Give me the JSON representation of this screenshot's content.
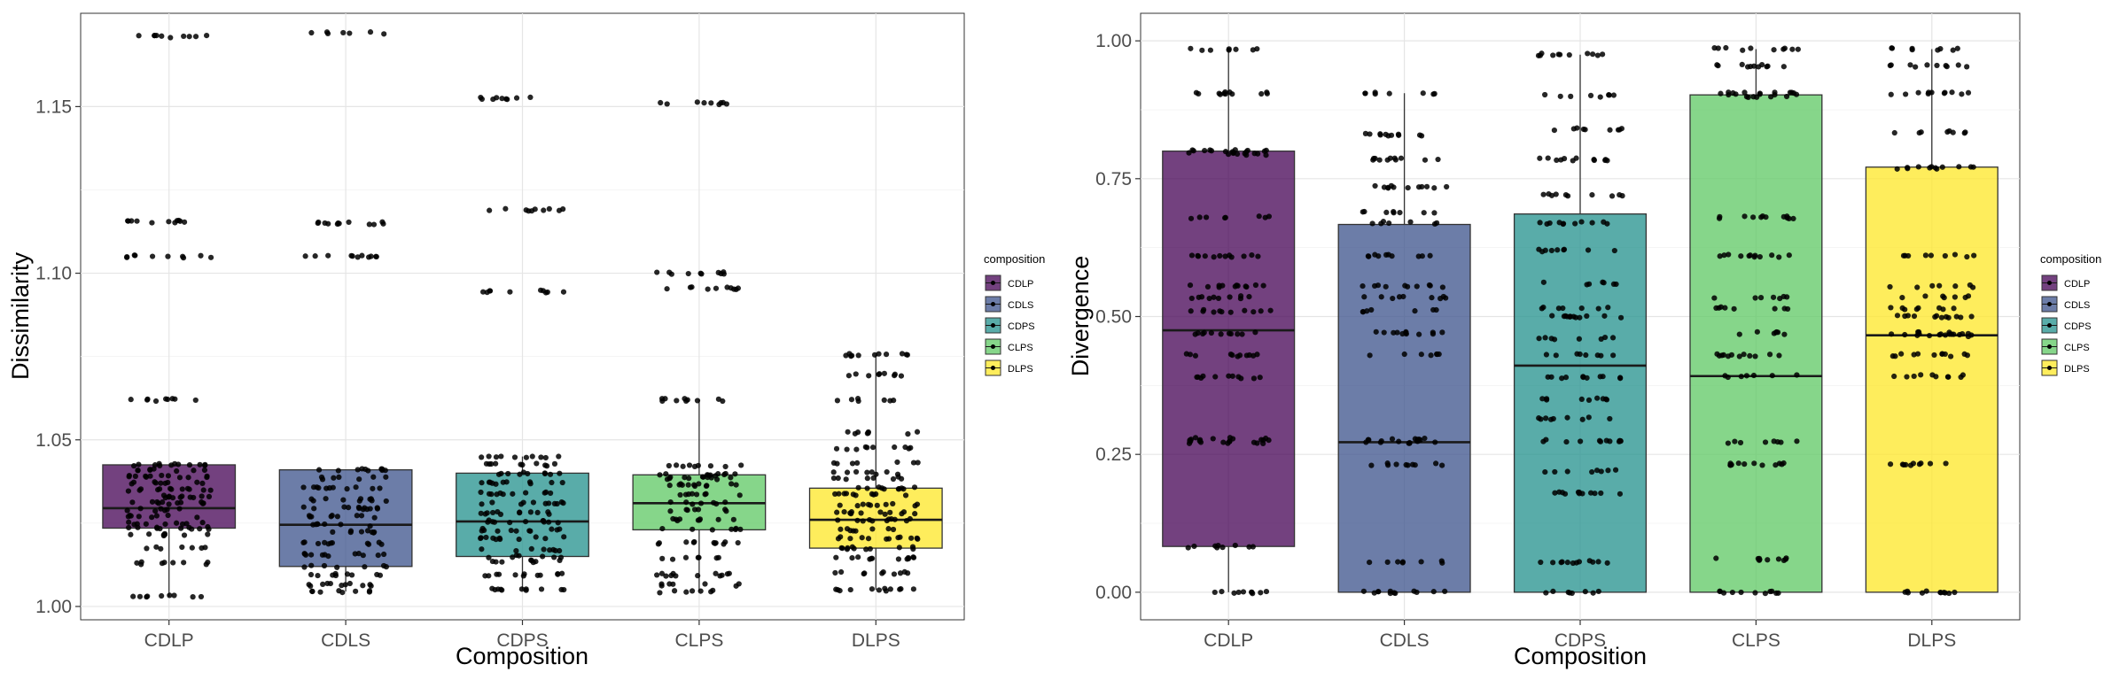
{
  "chart_data": [
    {
      "type": "box",
      "xlabel": "Composition",
      "ylabel": "Dissimilarity",
      "ylim": [
        0.996,
        1.178
      ],
      "yticks": [
        1.0,
        1.05,
        1.1,
        1.15
      ],
      "ytick_labels": [
        "1.00",
        "1.05",
        "1.10",
        "1.15"
      ],
      "grid": true,
      "legend": {
        "title": "composition",
        "position": "right",
        "entries": [
          "CDLP",
          "CDLS",
          "CDPS",
          "CLPS",
          "DLPS"
        ]
      },
      "categories": [
        "CDLP",
        "CDLS",
        "CDPS",
        "CLPS",
        "DLPS"
      ],
      "colors": [
        "#440154",
        "#3b528b",
        "#21908c",
        "#5dc863",
        "#fde725"
      ],
      "boxes": [
        {
          "name": "CDLP",
          "whisker_low": 1.003,
          "q1": 1.0235,
          "median": 1.0295,
          "q3": 1.0425,
          "whisker_high": 1.0425,
          "outliers": [
            1.062,
            1.105,
            1.1155,
            1.171
          ]
        },
        {
          "name": "CDLS",
          "whisker_low": 1.0045,
          "q1": 1.012,
          "median": 1.0245,
          "q3": 1.041,
          "whisker_high": 1.041,
          "outliers": [
            1.105,
            1.115,
            1.172
          ]
        },
        {
          "name": "CDPS",
          "whisker_low": 1.005,
          "q1": 1.015,
          "median": 1.0255,
          "q3": 1.04,
          "whisker_high": 1.045,
          "outliers": [
            1.0945,
            1.119,
            1.1525
          ]
        },
        {
          "name": "CLPS",
          "whisker_low": 1.0045,
          "q1": 1.023,
          "median": 1.031,
          "q3": 1.0395,
          "whisker_high": 1.062,
          "outliers": [
            1.0955,
            1.1,
            1.151
          ]
        },
        {
          "name": "DLPS",
          "whisker_low": 1.005,
          "q1": 1.0175,
          "median": 1.026,
          "q3": 1.0355,
          "whisker_high": 1.0755,
          "outliers": []
        }
      ],
      "points": [
        {
          "name": "CDLP",
          "values": [
            1.003,
            1.013,
            1.0175,
            1.0215,
            1.0235,
            1.025,
            1.027,
            1.029,
            1.031,
            1.033,
            1.035,
            1.037,
            1.039,
            1.041,
            1.0425,
            1.062,
            1.105,
            1.1155,
            1.171
          ]
        },
        {
          "name": "CDLS",
          "values": [
            1.0045,
            1.0065,
            1.0095,
            1.012,
            1.0155,
            1.019,
            1.0225,
            1.0245,
            1.027,
            1.0295,
            1.032,
            1.0355,
            1.0385,
            1.041,
            1.105,
            1.115,
            1.172
          ]
        },
        {
          "name": "CDPS",
          "values": [
            1.005,
            1.0095,
            1.0135,
            1.015,
            1.017,
            1.0205,
            1.023,
            1.0255,
            1.028,
            1.031,
            1.034,
            1.037,
            1.04,
            1.0425,
            1.045,
            1.0945,
            1.119,
            1.1525
          ]
        },
        {
          "name": "CLPS",
          "values": [
            1.0045,
            1.0065,
            1.0095,
            1.0145,
            1.019,
            1.023,
            1.026,
            1.029,
            1.031,
            1.0335,
            1.0365,
            1.0385,
            1.0395,
            1.042,
            1.062,
            1.0955,
            1.1,
            1.151
          ]
        },
        {
          "name": "DLPS",
          "values": [
            1.005,
            1.01,
            1.0145,
            1.0175,
            1.0205,
            1.023,
            1.026,
            1.028,
            1.0305,
            1.0335,
            1.0355,
            1.0385,
            1.04,
            1.043,
            1.0475,
            1.052,
            1.062,
            1.0695,
            1.0755
          ]
        }
      ]
    },
    {
      "type": "box",
      "xlabel": "Composition",
      "ylabel": "Divergence",
      "ylim": [
        -0.05,
        1.05
      ],
      "yticks": [
        0.0,
        0.25,
        0.5,
        0.75,
        1.0
      ],
      "ytick_labels": [
        "0.00",
        "0.25",
        "0.50",
        "0.75",
        "1.00"
      ],
      "grid": true,
      "legend": {
        "title": "composition",
        "position": "right",
        "entries": [
          "CDLP",
          "CDLS",
          "CDPS",
          "CLPS",
          "DLPS"
        ]
      },
      "categories": [
        "CDLP",
        "CDLS",
        "CDPS",
        "CLPS",
        "DLPS"
      ],
      "colors": [
        "#440154",
        "#3b528b",
        "#21908c",
        "#5dc863",
        "#fde725"
      ],
      "boxes": [
        {
          "name": "CDLP",
          "whisker_low": 0.0,
          "q1": 0.083,
          "median": 0.475,
          "q3": 0.8,
          "whisker_high": 0.985,
          "outliers": []
        },
        {
          "name": "CDLS",
          "whisker_low": 0.0,
          "q1": 0.0,
          "median": 0.272,
          "q3": 0.667,
          "whisker_high": 0.905,
          "outliers": []
        },
        {
          "name": "CDPS",
          "whisker_low": 0.0,
          "q1": 0.0,
          "median": 0.411,
          "q3": 0.686,
          "whisker_high": 0.975,
          "outliers": []
        },
        {
          "name": "CLPS",
          "whisker_low": 0.0,
          "q1": 0.0,
          "median": 0.392,
          "q3": 0.902,
          "whisker_high": 0.985,
          "outliers": []
        },
        {
          "name": "DLPS",
          "whisker_low": 0.0,
          "q1": 0.0,
          "median": 0.466,
          "q3": 0.771,
          "whisker_high": 0.985,
          "outliers": []
        }
      ],
      "points": [
        {
          "name": "CDLP",
          "values": [
            0.0,
            0.083,
            0.272,
            0.278,
            0.39,
            0.43,
            0.47,
            0.51,
            0.535,
            0.555,
            0.61,
            0.68,
            0.795,
            0.8,
            0.905,
            0.985
          ]
        },
        {
          "name": "CDLS",
          "values": [
            0.0,
            0.055,
            0.232,
            0.272,
            0.278,
            0.43,
            0.47,
            0.51,
            0.535,
            0.555,
            0.61,
            0.67,
            0.69,
            0.735,
            0.785,
            0.83,
            0.905
          ]
        },
        {
          "name": "CDPS",
          "values": [
            0.0,
            0.055,
            0.18,
            0.22,
            0.275,
            0.315,
            0.35,
            0.39,
            0.43,
            0.46,
            0.5,
            0.515,
            0.56,
            0.62,
            0.67,
            0.72,
            0.785,
            0.84,
            0.9,
            0.975
          ]
        },
        {
          "name": "CLPS",
          "values": [
            0.0,
            0.06,
            0.232,
            0.272,
            0.392,
            0.43,
            0.47,
            0.515,
            0.535,
            0.61,
            0.68,
            0.9,
            0.905,
            0.955,
            0.985
          ]
        },
        {
          "name": "DLPS",
          "values": [
            0.0,
            0.232,
            0.392,
            0.43,
            0.466,
            0.47,
            0.5,
            0.515,
            0.535,
            0.555,
            0.61,
            0.77,
            0.835,
            0.905,
            0.955,
            0.985
          ]
        }
      ]
    }
  ]
}
